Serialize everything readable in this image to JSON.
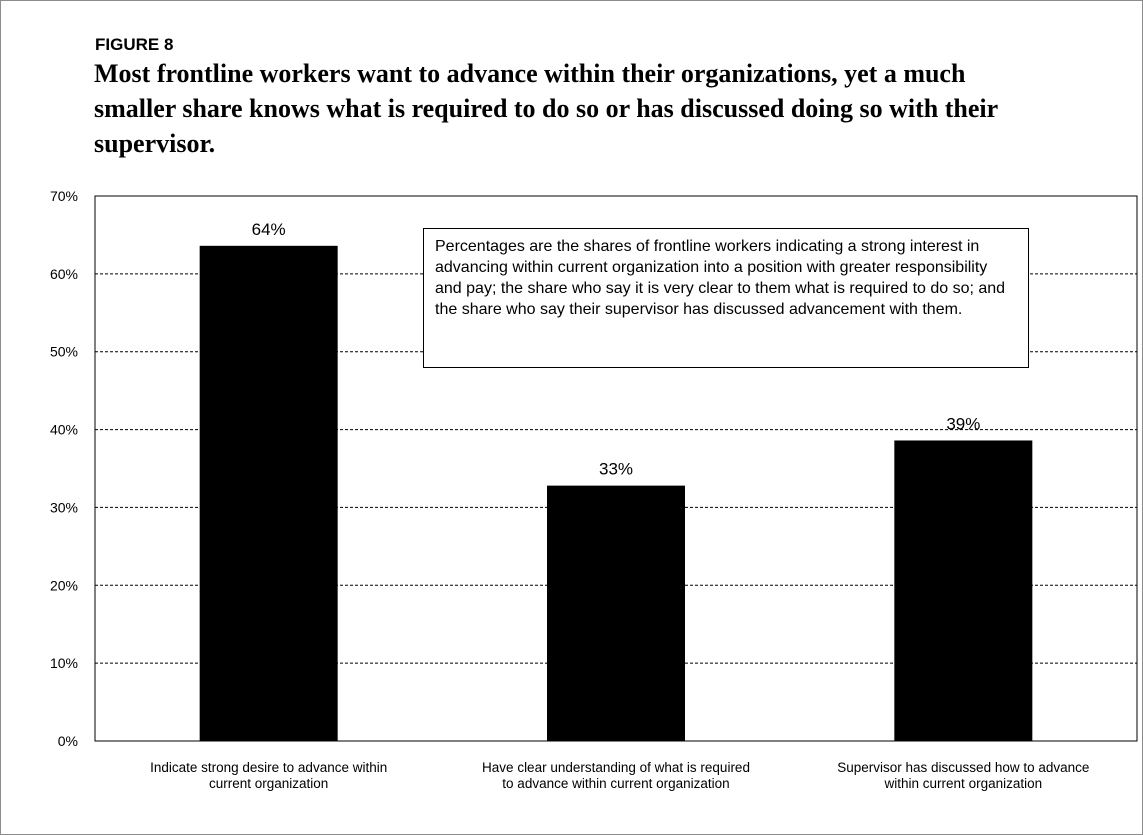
{
  "figure_label": "FIGURE 8",
  "title": "Most frontline workers want to advance within their organizations, yet a much smaller share knows what is required to do so or has discussed doing so with their supervisor.",
  "note": "Percentages are the shares of frontline workers indicating a strong interest in advancing within current organization into a position with greater responsibility and pay; the share who say it is very clear to them what is required to do so; and the share who say their supervisor has discussed advancement with them.",
  "chart_data": {
    "type": "bar",
    "categories": [
      [
        "Indicate strong desire to advance within",
        "current organization"
      ],
      [
        "Have clear understanding of what is required",
        "to advance within current organization"
      ],
      [
        "Supervisor has discussed how to advance",
        "within current organization"
      ]
    ],
    "values": [
      63.6,
      32.8,
      38.6
    ],
    "data_labels": [
      "64%",
      "33%",
      "39%"
    ],
    "ylim": [
      0,
      70
    ],
    "yticks": [
      0,
      10,
      20,
      30,
      40,
      50,
      60,
      70
    ],
    "ytick_labels": [
      "0%",
      "10%",
      "20%",
      "30%",
      "40%",
      "50%",
      "60%",
      "70%"
    ],
    "grid": true,
    "bar_color": "#000000",
    "legend": "none"
  }
}
